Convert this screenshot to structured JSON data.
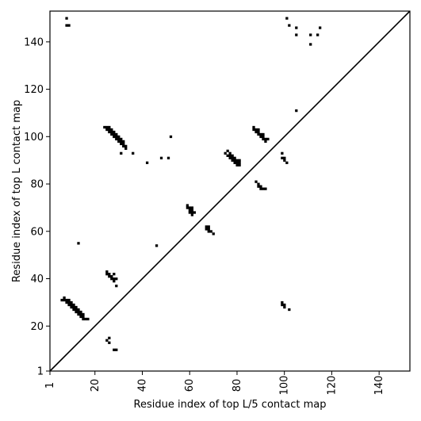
{
  "chart_data": {
    "type": "scatter",
    "title": "",
    "xlabel": "Residue index of top L/5 contact map",
    "ylabel": "Residue index of top L contact map",
    "xlim": [
      1,
      153
    ],
    "ylim": [
      1,
      153
    ],
    "x_ticks": [
      1,
      20,
      40,
      60,
      80,
      100,
      120,
      140
    ],
    "y_ticks": [
      1,
      20,
      40,
      60,
      80,
      100,
      120,
      140
    ],
    "grid": false,
    "legend": "none",
    "marker": "square",
    "marker_color": "#000000",
    "diagonal_line": true,
    "series": [
      {
        "name": "",
        "points": [
          [
            8,
            150
          ],
          [
            8,
            147
          ],
          [
            9,
            147
          ],
          [
            6,
            31
          ],
          [
            7,
            31
          ],
          [
            7,
            32
          ],
          [
            8,
            30
          ],
          [
            8,
            31
          ],
          [
            9,
            29
          ],
          [
            9,
            30
          ],
          [
            9,
            31
          ],
          [
            10,
            28
          ],
          [
            10,
            29
          ],
          [
            10,
            30
          ],
          [
            11,
            27
          ],
          [
            11,
            28
          ],
          [
            11,
            29
          ],
          [
            12,
            26
          ],
          [
            12,
            27
          ],
          [
            12,
            28
          ],
          [
            13,
            25
          ],
          [
            13,
            26
          ],
          [
            13,
            27
          ],
          [
            14,
            24
          ],
          [
            14,
            25
          ],
          [
            14,
            26
          ],
          [
            15,
            23
          ],
          [
            15,
            24
          ],
          [
            15,
            25
          ],
          [
            16,
            23
          ],
          [
            17,
            23
          ],
          [
            13,
            55
          ],
          [
            24,
            104
          ],
          [
            25,
            103
          ],
          [
            25,
            104
          ],
          [
            26,
            102
          ],
          [
            26,
            103
          ],
          [
            26,
            104
          ],
          [
            27,
            101
          ],
          [
            27,
            102
          ],
          [
            27,
            103
          ],
          [
            28,
            100
          ],
          [
            28,
            101
          ],
          [
            28,
            102
          ],
          [
            29,
            99
          ],
          [
            29,
            100
          ],
          [
            29,
            101
          ],
          [
            30,
            98
          ],
          [
            30,
            99
          ],
          [
            30,
            100
          ],
          [
            31,
            97
          ],
          [
            31,
            98
          ],
          [
            31,
            99
          ],
          [
            32,
            96
          ],
          [
            32,
            97
          ],
          [
            32,
            98
          ],
          [
            33,
            95
          ],
          [
            33,
            96
          ],
          [
            31,
            93
          ],
          [
            36,
            93
          ],
          [
            25,
            42
          ],
          [
            25,
            43
          ],
          [
            26,
            41
          ],
          [
            26,
            42
          ],
          [
            27,
            40
          ],
          [
            27,
            41
          ],
          [
            28,
            39
          ],
          [
            28,
            40
          ],
          [
            28,
            42
          ],
          [
            29,
            37
          ],
          [
            29,
            40
          ],
          [
            25,
            14
          ],
          [
            26,
            13
          ],
          [
            26,
            15
          ],
          [
            28,
            10
          ],
          [
            29,
            10
          ],
          [
            42,
            89
          ],
          [
            48,
            91
          ],
          [
            51,
            91
          ],
          [
            52,
            100
          ],
          [
            46,
            54
          ],
          [
            59,
            70
          ],
          [
            59,
            71
          ],
          [
            60,
            69
          ],
          [
            60,
            70
          ],
          [
            60,
            68
          ],
          [
            61,
            67
          ],
          [
            61,
            68
          ],
          [
            61,
            69
          ],
          [
            61,
            70
          ],
          [
            62,
            68
          ],
          [
            67,
            61
          ],
          [
            67,
            62
          ],
          [
            68,
            60
          ],
          [
            68,
            61
          ],
          [
            68,
            62
          ],
          [
            69,
            60
          ],
          [
            70,
            59
          ],
          [
            75,
            93
          ],
          [
            76,
            92
          ],
          [
            76,
            94
          ],
          [
            77,
            91
          ],
          [
            77,
            92
          ],
          [
            77,
            93
          ],
          [
            78,
            90
          ],
          [
            78,
            91
          ],
          [
            78,
            92
          ],
          [
            79,
            89
          ],
          [
            79,
            90
          ],
          [
            79,
            91
          ],
          [
            80,
            88
          ],
          [
            80,
            89
          ],
          [
            80,
            90
          ],
          [
            81,
            88
          ],
          [
            81,
            89
          ],
          [
            81,
            90
          ],
          [
            87,
            103
          ],
          [
            87,
            104
          ],
          [
            88,
            102
          ],
          [
            88,
            103
          ],
          [
            89,
            101
          ],
          [
            89,
            102
          ],
          [
            89,
            103
          ],
          [
            90,
            100
          ],
          [
            90,
            101
          ],
          [
            91,
            99
          ],
          [
            91,
            100
          ],
          [
            91,
            101
          ],
          [
            92,
            98
          ],
          [
            92,
            99
          ],
          [
            93,
            99
          ],
          [
            88,
            81
          ],
          [
            89,
            79
          ],
          [
            89,
            80
          ],
          [
            90,
            78
          ],
          [
            90,
            79
          ],
          [
            91,
            78
          ],
          [
            92,
            78
          ],
          [
            99,
            93
          ],
          [
            99,
            91
          ],
          [
            100,
            90
          ],
          [
            100,
            91
          ],
          [
            101,
            89
          ],
          [
            99,
            30
          ],
          [
            99,
            29
          ],
          [
            100,
            28
          ],
          [
            100,
            29
          ],
          [
            102,
            27
          ],
          [
            101,
            150
          ],
          [
            102,
            147
          ],
          [
            105,
            146
          ],
          [
            105,
            143
          ],
          [
            105,
            111
          ],
          [
            111,
            143
          ],
          [
            111,
            139
          ],
          [
            114,
            143
          ],
          [
            115,
            146
          ]
        ]
      }
    ]
  }
}
